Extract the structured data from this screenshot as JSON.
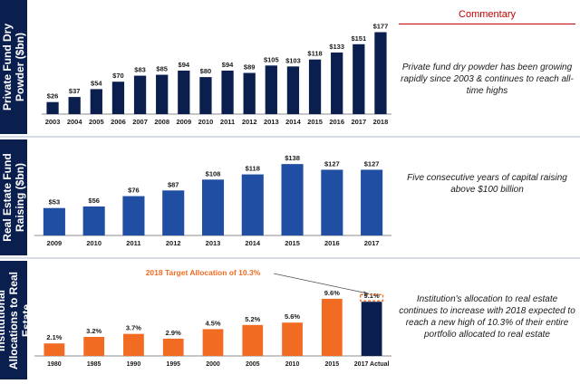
{
  "commentary": {
    "header": "Commentary",
    "text1": "Private fund dry powder has been growing rapidly since 2003 & continues to reach all-time highs",
    "text2": "Five consecutive years of capital raising above $100 billion",
    "text3": "Institution's allocation to real estate continues to increase with 2018 expected to reach a new high of 10.3% of their entire portfolio allocated to real estate"
  },
  "panels": {
    "p1_label": "Private Fund Dry Powder ($bn)",
    "p2_label": "Real Estate Fund Raising ($bn)",
    "p3_label": "Institutional Allocations to Real Estate"
  },
  "colors": {
    "navy": "#0b1f4f",
    "blue": "#1f4ea3",
    "orange": "#f26b22",
    "annotation": "#f26b22"
  },
  "chart_data": [
    {
      "type": "bar",
      "title": "",
      "categories": [
        "2003",
        "2004",
        "2005",
        "2006",
        "2007",
        "2008",
        "2009",
        "2010",
        "2011",
        "2012",
        "2013",
        "2014",
        "2015",
        "2016",
        "2017",
        "2018"
      ],
      "values": [
        26,
        37,
        54,
        70,
        83,
        85,
        94,
        80,
        94,
        89,
        105,
        103,
        118,
        133,
        151,
        177
      ],
      "labels": [
        "$26",
        "$37",
        "$54",
        "$70",
        "$83",
        "$85",
        "$94",
        "$80",
        "$94",
        "$89",
        "$105",
        "$103",
        "$118",
        "$133",
        "$151",
        "$177"
      ],
      "ylim": [
        0,
        180
      ],
      "grid": false,
      "color": "#0b1f4f"
    },
    {
      "type": "bar",
      "title": "",
      "categories": [
        "2009",
        "2010",
        "2011",
        "2012",
        "2013",
        "2014",
        "2015",
        "2016",
        "2017"
      ],
      "values": [
        53,
        56,
        76,
        87,
        108,
        118,
        138,
        127,
        127
      ],
      "labels": [
        "$53",
        "$56",
        "$76",
        "$87",
        "$108",
        "$118",
        "$138",
        "$127",
        "$127"
      ],
      "ylim": [
        0,
        140
      ],
      "grid": false,
      "color": "#1f4ea3"
    },
    {
      "type": "bar",
      "title": "",
      "categories": [
        "1980",
        "1985",
        "1990",
        "1995",
        "2000",
        "2005",
        "2010",
        "2015",
        "2017 Actual"
      ],
      "values": [
        2.1,
        3.2,
        3.7,
        2.9,
        4.5,
        5.2,
        5.6,
        9.6,
        9.1
      ],
      "labels": [
        "2.1%",
        "3.2%",
        "3.7%",
        "2.9%",
        "4.5%",
        "5.2%",
        "5.6%",
        "9.6%",
        "9.1%"
      ],
      "ylim": [
        0,
        10.5
      ],
      "grid": false,
      "colors": [
        "#f26b22",
        "#f26b22",
        "#f26b22",
        "#f26b22",
        "#f26b22",
        "#f26b22",
        "#f26b22",
        "#f26b22",
        "#0b1f4f"
      ],
      "target_value": 10.3,
      "annotation": "2018 Target Allocation of 10.3%"
    }
  ]
}
